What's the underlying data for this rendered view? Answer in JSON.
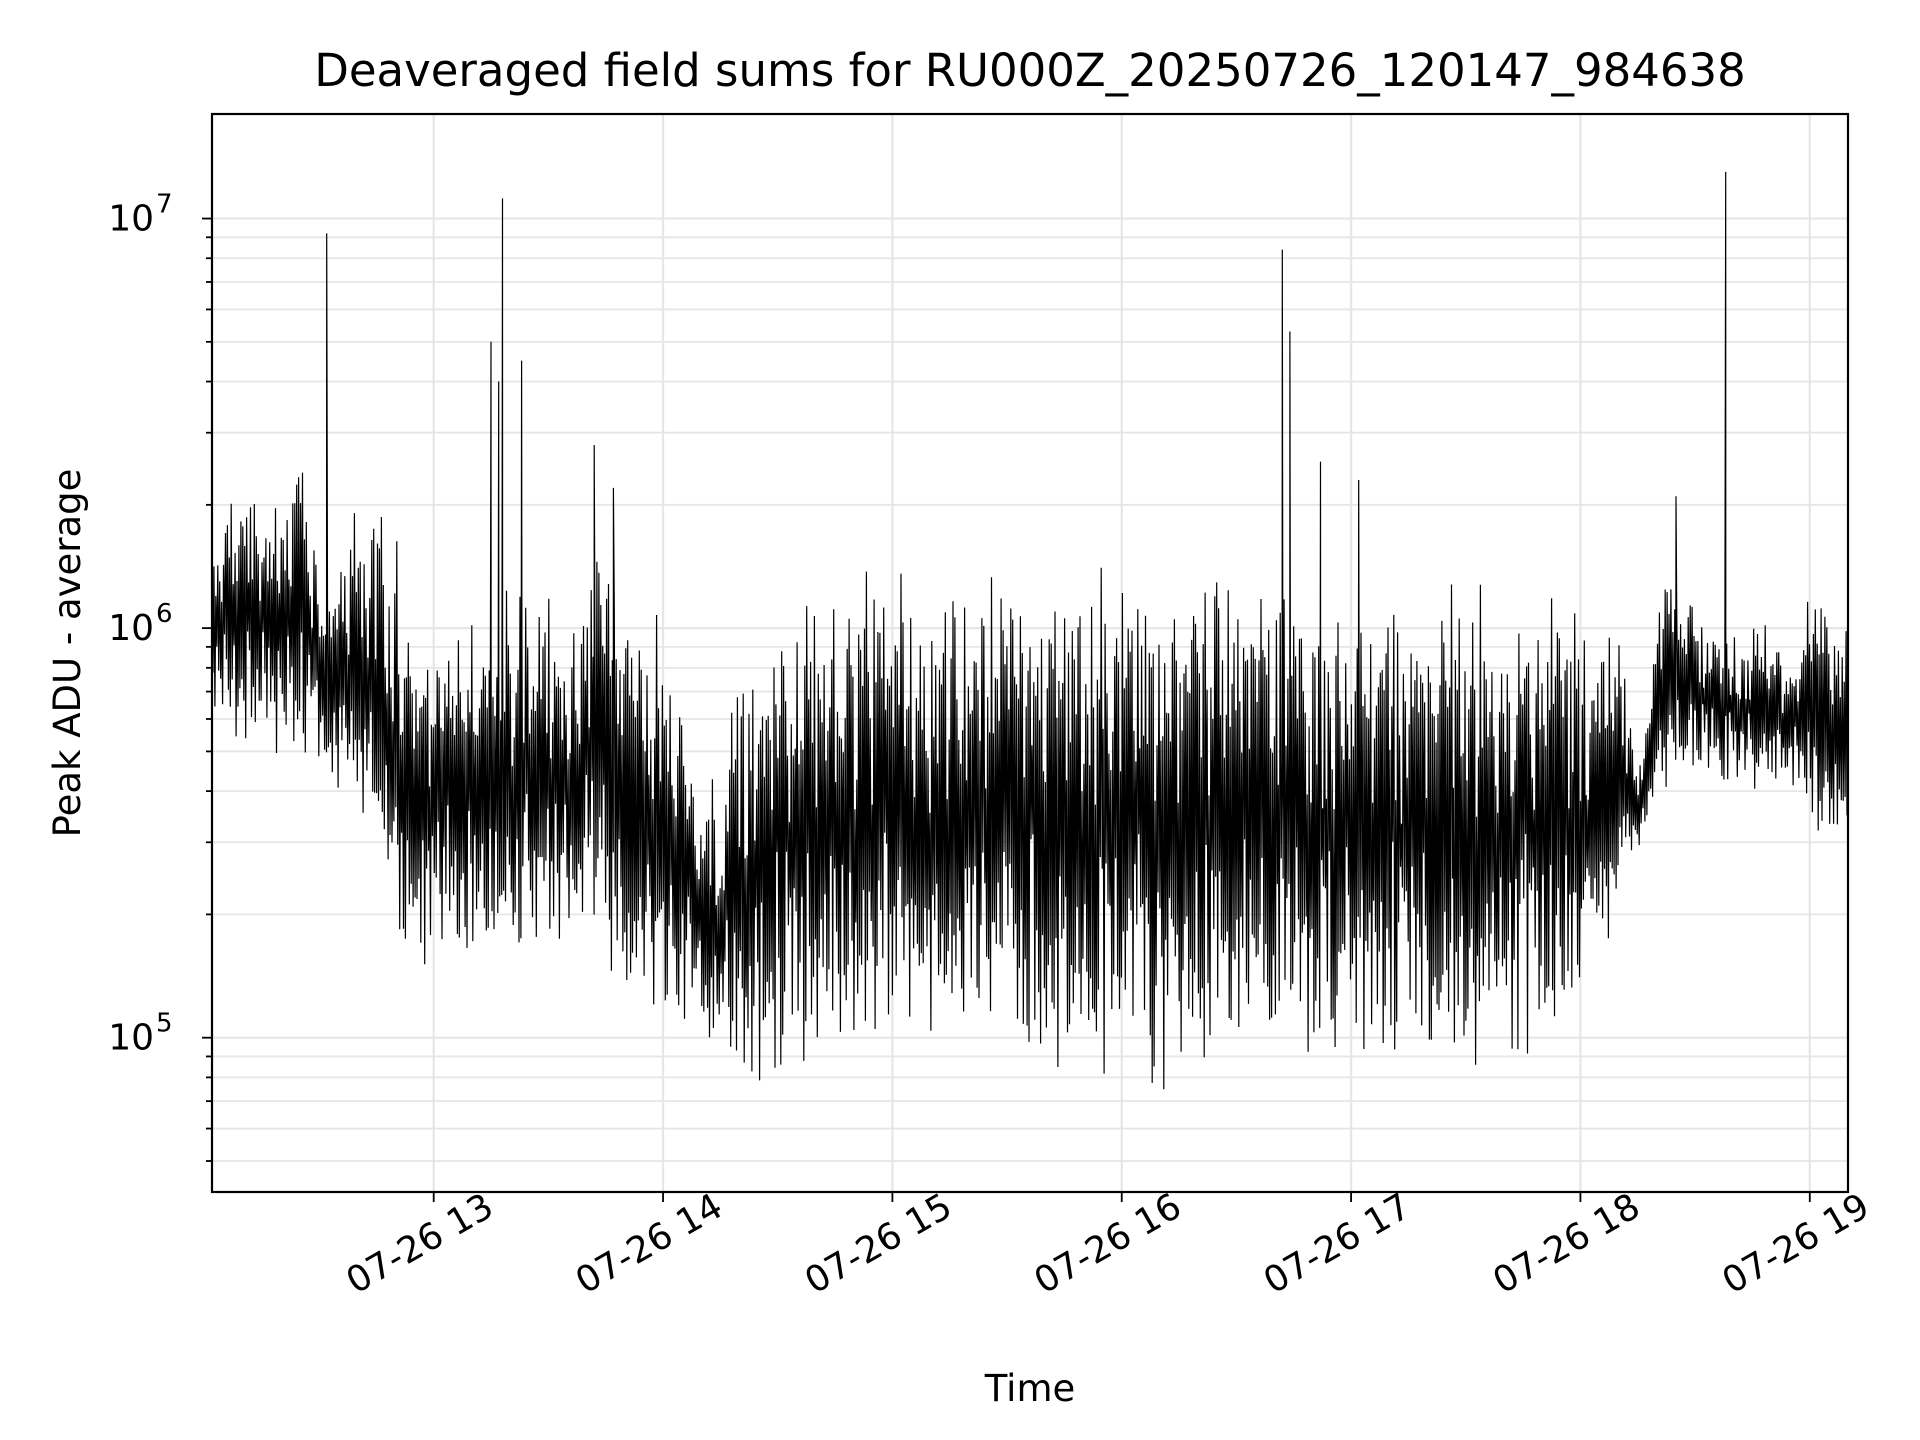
{
  "chart_data": {
    "type": "line",
    "title": "Deaveraged field sums for RU000Z_20250726_120147_984638",
    "xlabel": "Time",
    "ylabel": "Peak ADU - average",
    "yscale": "log",
    "xlim": [
      "2025-07-26 12:02",
      "2025-07-26 19:10"
    ],
    "ylim": [
      42000,
      18000000
    ],
    "grid": true,
    "line_color": "#000000",
    "grid_color": "#e6e6e6",
    "x_ticks": [
      "07-26 13",
      "07-26 14",
      "07-26 15",
      "07-26 16",
      "07-26 17",
      "07-26 18",
      "07-26 19"
    ],
    "y_ticks": [
      {
        "value": 100000,
        "base": "10",
        "exp": "5"
      },
      {
        "value": 1000000,
        "base": "10",
        "exp": "6"
      },
      {
        "value": 10000000,
        "base": "10",
        "exp": "7"
      }
    ],
    "series": [
      {
        "x": [
          "12:02",
          "12:05",
          "12:10",
          "12:15",
          "12:20",
          "12:25",
          "12:30",
          "12:35",
          "12:40",
          "12:45",
          "12:50",
          "12:55",
          "13:00",
          "13:05",
          "13:10",
          "13:15",
          "13:20",
          "13:25",
          "13:30",
          "13:35",
          "13:40",
          "13:45",
          "13:50",
          "13:55",
          "14:00",
          "14:05",
          "14:10",
          "14:15",
          "14:20",
          "14:25",
          "14:30",
          "14:35",
          "14:40",
          "14:45",
          "14:50",
          "14:55",
          "15:00",
          "15:05",
          "15:10",
          "15:15",
          "15:20",
          "15:25",
          "15:30",
          "15:35",
          "15:40",
          "15:45",
          "15:50",
          "15:55",
          "16:00",
          "16:05",
          "16:10",
          "16:15",
          "16:20",
          "16:25",
          "16:30",
          "16:35",
          "16:40",
          "16:45",
          "16:50",
          "16:55",
          "17:00",
          "17:05",
          "17:10",
          "17:15",
          "17:20",
          "17:25",
          "17:30",
          "17:35",
          "17:40",
          "17:45",
          "17:50",
          "17:55",
          "18:00",
          "18:05",
          "18:10",
          "18:15",
          "18:20",
          "18:25",
          "18:30",
          "18:35",
          "18:40",
          "18:45",
          "18:50",
          "18:55",
          "19:00",
          "19:05",
          "19:10"
        ],
        "upper": [
          1800000,
          2200000,
          2600000,
          2300000,
          2000000,
          3100000,
          1700000,
          1600000,
          2300000,
          2400000,
          1800000,
          900000,
          1000000,
          1100000,
          1100000,
          1050000,
          1300000,
          1300000,
          1200000,
          1200000,
          1400000,
          2200000,
          1400000,
          1200000,
          1100000,
          800000,
          500000,
          450000,
          1000000,
          750000,
          1300000,
          1300000,
          1400000,
          1400000,
          1400000,
          1450000,
          1400000,
          1450000,
          1500000,
          1500000,
          1550000,
          1500000,
          1500000,
          1500000,
          1500000,
          1550000,
          1550000,
          1550000,
          1550000,
          1550000,
          1500000,
          1550000,
          1500000,
          1500000,
          1550000,
          1550000,
          1600000,
          1500000,
          1350000,
          1300000,
          1300000,
          1300000,
          1300000,
          1300000,
          1400000,
          1500000,
          1500000,
          1550000,
          1500000,
          1450000,
          1400000,
          1350000,
          1250000,
          1100000,
          1000000,
          450000,
          1100000,
          1500000,
          1200000,
          1100000,
          1000000,
          1100000,
          1050000,
          900000,
          1300000,
          1250000,
          1200000
        ],
        "lower": [
          550000,
          500000,
          520000,
          480000,
          450000,
          430000,
          420000,
          380000,
          300000,
          250000,
          170000,
          140000,
          130000,
          150000,
          140000,
          140000,
          150000,
          160000,
          170000,
          150000,
          150000,
          130000,
          110000,
          100000,
          100000,
          85000,
          80000,
          75000,
          70000,
          70000,
          70000,
          72000,
          75000,
          75000,
          80000,
          80000,
          80000,
          80000,
          80000,
          75000,
          80000,
          80000,
          82000,
          80000,
          75000,
          75000,
          75000,
          70000,
          75000,
          72000,
          70000,
          75000,
          72000,
          70000,
          75000,
          72000,
          72000,
          70000,
          75000,
          80000,
          80000,
          82000,
          85000,
          75000,
          75000,
          75000,
          72000,
          70000,
          70000,
          75000,
          75000,
          85000,
          100000,
          130000,
          200000,
          280000,
          380000,
          380000,
          400000,
          400000,
          400000,
          380000,
          380000,
          370000,
          320000,
          280000,
          270000
        ],
        "spikes": [
          {
            "x": "12:32",
            "y": 9200000
          },
          {
            "x": "13:15",
            "y": 5000000
          },
          {
            "x": "13:17",
            "y": 4000000
          },
          {
            "x": "13:18",
            "y": 11200000
          },
          {
            "x": "13:23",
            "y": 4500000
          },
          {
            "x": "13:42",
            "y": 2800000
          },
          {
            "x": "13:47",
            "y": 2200000
          },
          {
            "x": "16:42",
            "y": 8400000
          },
          {
            "x": "16:44",
            "y": 5300000
          },
          {
            "x": "16:52",
            "y": 2550000
          },
          {
            "x": "17:02",
            "y": 2300000
          },
          {
            "x": "18:25",
            "y": 2100000
          },
          {
            "x": "18:38",
            "y": 13000000
          }
        ]
      }
    ]
  }
}
